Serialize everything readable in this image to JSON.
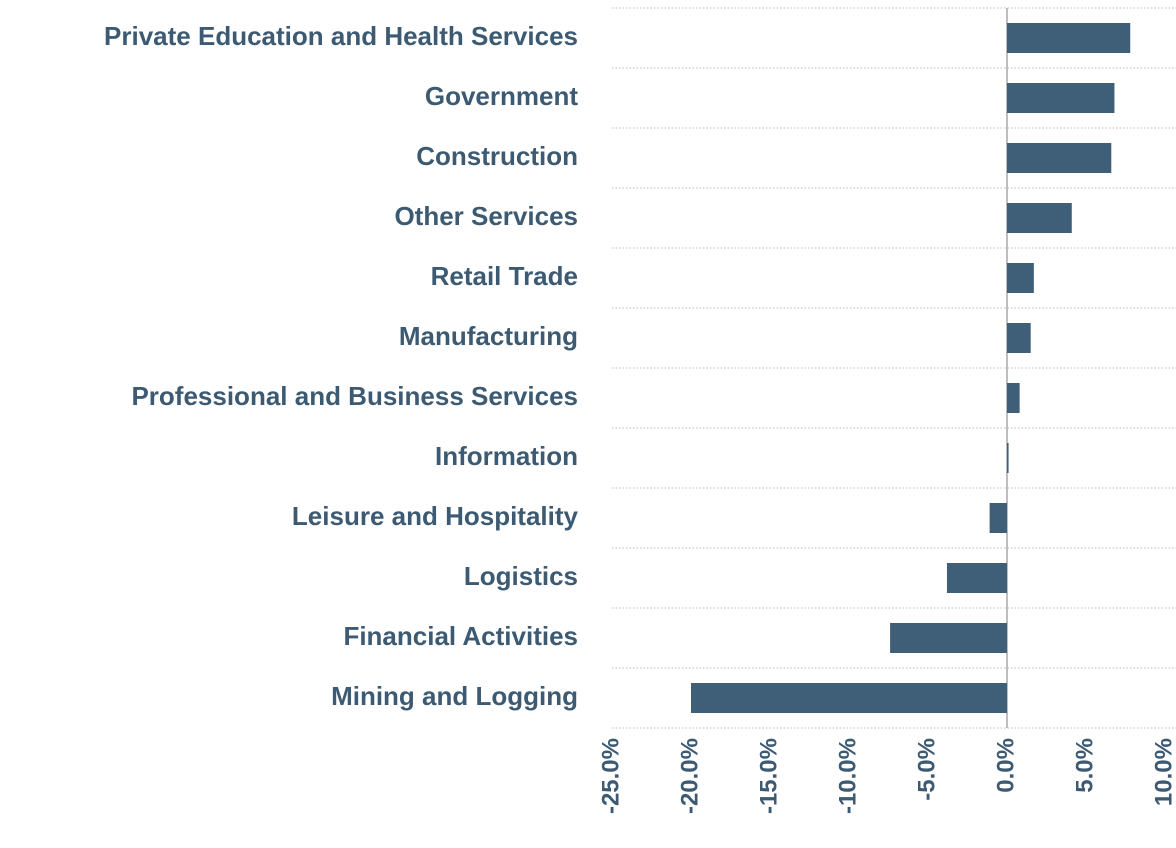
{
  "chart_data": {
    "type": "barh",
    "color": "#3f5f78",
    "categories": [
      "Private Education and Health Services",
      "Government",
      "Construction",
      "Other Services",
      "Retail Trade",
      "Manufacturing",
      "Professional and Business Services",
      "Information",
      "Leisure and Hospitality",
      "Logistics",
      "Financial Activities",
      "Mining and Logging"
    ],
    "values": [
      7.8,
      6.8,
      6.6,
      4.1,
      1.7,
      1.5,
      0.8,
      0.1,
      -1.1,
      -3.8,
      -7.4,
      -20.0
    ],
    "xlim": [
      -25,
      10
    ],
    "xticks": [
      {
        "value": -25,
        "label": "-25.0%"
      },
      {
        "value": -20,
        "label": "-20.0%"
      },
      {
        "value": -15,
        "label": "-15.0%"
      },
      {
        "value": -10,
        "label": "-10.0%"
      },
      {
        "value": -5,
        "label": "-5.0%"
      },
      {
        "value": 0,
        "label": "0.0%"
      },
      {
        "value": 5,
        "label": "5.0%"
      },
      {
        "value": 10,
        "label": "10.0%"
      }
    ]
  }
}
